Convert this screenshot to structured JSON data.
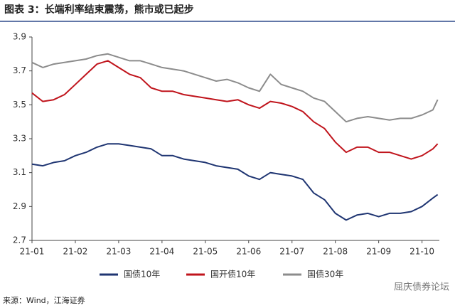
{
  "chart_data": {
    "type": "line",
    "title": "图表 3：长端利率结束震荡，熊市或已起步",
    "source": "来源：Wind，江海证券",
    "watermark": "屈庆债券论坛",
    "x": [
      0,
      0.25,
      0.5,
      0.75,
      1,
      1.25,
      1.5,
      1.75,
      2,
      2.25,
      2.5,
      2.75,
      3,
      3.25,
      3.5,
      3.75,
      4,
      4.25,
      4.5,
      4.75,
      5,
      5.25,
      5.5,
      5.75,
      6,
      6.25,
      6.5,
      6.75,
      7,
      7.25,
      7.5,
      7.75,
      8,
      8.25,
      8.5,
      8.75,
      9,
      9.25,
      9.36
    ],
    "xlim": [
      0,
      9.4
    ],
    "xticks": [
      {
        "value": 0,
        "label": "21-01"
      },
      {
        "value": 1,
        "label": "21-02"
      },
      {
        "value": 2,
        "label": "21-03"
      },
      {
        "value": 3,
        "label": "21-04"
      },
      {
        "value": 4,
        "label": "21-05"
      },
      {
        "value": 5,
        "label": "21-06"
      },
      {
        "value": 6,
        "label": "21-07"
      },
      {
        "value": 7,
        "label": "21-08"
      },
      {
        "value": 8,
        "label": "21-09"
      },
      {
        "value": 9,
        "label": "21-10"
      }
    ],
    "ylim": [
      2.7,
      3.9
    ],
    "yticks": [
      2.7,
      2.9,
      3.1,
      3.3,
      3.5,
      3.7,
      3.9
    ],
    "grid": false,
    "legend": "bottom",
    "series": [
      {
        "name": "国债10年",
        "color": "#1f3572",
        "values": [
          3.15,
          3.14,
          3.16,
          3.17,
          3.2,
          3.22,
          3.25,
          3.27,
          3.27,
          3.26,
          3.25,
          3.24,
          3.2,
          3.2,
          3.18,
          3.17,
          3.16,
          3.14,
          3.13,
          3.12,
          3.08,
          3.06,
          3.1,
          3.09,
          3.08,
          3.06,
          2.98,
          2.94,
          2.86,
          2.82,
          2.85,
          2.86,
          2.84,
          2.86,
          2.86,
          2.87,
          2.9,
          2.95,
          2.97
        ]
      },
      {
        "name": "国开债10年",
        "color": "#c0141c",
        "values": [
          3.57,
          3.52,
          3.53,
          3.56,
          3.62,
          3.68,
          3.74,
          3.76,
          3.72,
          3.68,
          3.66,
          3.6,
          3.58,
          3.58,
          3.56,
          3.55,
          3.54,
          3.53,
          3.52,
          3.53,
          3.5,
          3.48,
          3.52,
          3.51,
          3.49,
          3.46,
          3.4,
          3.36,
          3.28,
          3.22,
          3.25,
          3.25,
          3.22,
          3.22,
          3.2,
          3.18,
          3.2,
          3.24,
          3.27
        ]
      },
      {
        "name": "国债30年",
        "color": "#8c8c8c",
        "values": [
          3.75,
          3.72,
          3.74,
          3.75,
          3.76,
          3.77,
          3.79,
          3.8,
          3.78,
          3.76,
          3.76,
          3.74,
          3.72,
          3.71,
          3.7,
          3.68,
          3.66,
          3.64,
          3.65,
          3.63,
          3.6,
          3.58,
          3.68,
          3.62,
          3.6,
          3.58,
          3.54,
          3.52,
          3.46,
          3.4,
          3.42,
          3.43,
          3.42,
          3.41,
          3.42,
          3.42,
          3.44,
          3.47,
          3.53
        ]
      }
    ]
  }
}
